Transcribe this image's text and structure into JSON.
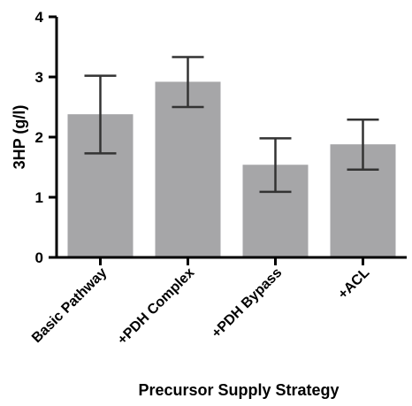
{
  "chart_data": {
    "type": "bar",
    "title": "",
    "xlabel": "Precursor Supply Strategy",
    "ylabel": "3HP (g/l)",
    "categories": [
      "Basic Pathway",
      "+PDH Complex",
      "+PDH Bypass",
      "+ACL"
    ],
    "values": [
      2.38,
      2.92,
      1.54,
      1.88
    ],
    "error_low": [
      1.73,
      2.5,
      1.09,
      1.46
    ],
    "error_high": [
      3.02,
      3.33,
      1.98,
      2.29
    ],
    "ylim": [
      0,
      4
    ],
    "yticks": [
      "0",
      "1",
      "2",
      "3",
      "4"
    ],
    "grid": false,
    "legend": "none",
    "colors": {
      "bar": "#a6a6a8",
      "axis": "#000000",
      "error": "#333333"
    }
  }
}
